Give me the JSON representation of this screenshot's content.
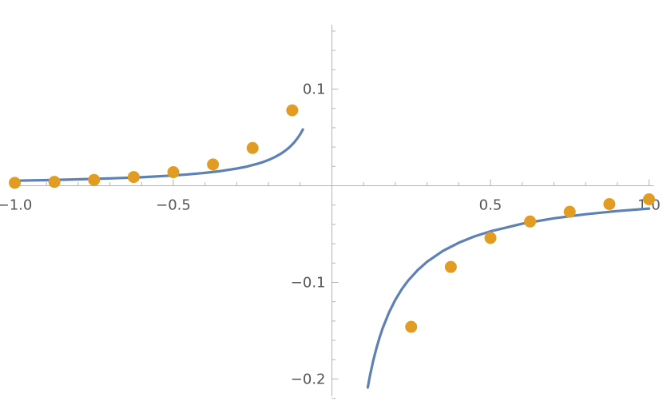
{
  "chart_data": {
    "type": "scatter",
    "title": "",
    "xlabel": "",
    "ylabel": "",
    "xlim": [
      -1.0,
      1.0
    ],
    "ylim": [
      -0.22,
      0.17
    ],
    "grid": false,
    "legend": "none",
    "x_major_ticks": [
      {
        "value": -1.0,
        "label": "−1.0"
      },
      {
        "value": -0.5,
        "label": "−0.5"
      },
      {
        "value": 0.5,
        "label": "0.5"
      },
      {
        "value": 1.0,
        "label": "1.0"
      }
    ],
    "y_major_ticks": [
      {
        "value": 0.1,
        "label": "0.1"
      },
      {
        "value": -0.1,
        "label": "−0.1"
      },
      {
        "value": -0.2,
        "label": "−0.2"
      }
    ],
    "x_minor_step": 0.1,
    "y_minor_step": 0.02,
    "curve": {
      "color": "#5e81b5",
      "segments": [
        {
          "x_start": -1.0,
          "x_end": -0.0915
        },
        {
          "x_start": 0.113,
          "x_end": 1.0
        }
      ],
      "points": [
        [
          -1.0,
          0.0052
        ],
        [
          -0.9,
          0.0058
        ],
        [
          -0.8,
          0.0066
        ],
        [
          -0.7,
          0.0076
        ],
        [
          -0.6,
          0.0088
        ],
        [
          -0.5,
          0.0106
        ],
        [
          -0.45,
          0.0118
        ],
        [
          -0.4,
          0.0133
        ],
        [
          -0.35,
          0.0152
        ],
        [
          -0.3,
          0.0178
        ],
        [
          -0.27,
          0.0197
        ],
        [
          -0.24,
          0.0222
        ],
        [
          -0.22,
          0.0242
        ],
        [
          -0.2,
          0.0266
        ],
        [
          -0.18,
          0.0296
        ],
        [
          -0.16,
          0.0333
        ],
        [
          -0.15,
          0.0355
        ],
        [
          -0.14,
          0.038
        ],
        [
          -0.13,
          0.041
        ],
        [
          -0.12,
          0.0444
        ],
        [
          -0.11,
          0.0484
        ],
        [
          -0.1,
          0.0532
        ],
        [
          -0.0915,
          0.0582
        ],
        [
          0.113,
          -0.2088
        ],
        [
          0.12,
          -0.1967
        ],
        [
          0.13,
          -0.1815
        ],
        [
          0.14,
          -0.1686
        ],
        [
          0.15,
          -0.1573
        ],
        [
          0.16,
          -0.1475
        ],
        [
          0.18,
          -0.1311
        ],
        [
          0.2,
          -0.118
        ],
        [
          0.22,
          -0.1073
        ],
        [
          0.24,
          -0.0983
        ],
        [
          0.27,
          -0.0874
        ],
        [
          0.3,
          -0.0787
        ],
        [
          0.35,
          -0.0674
        ],
        [
          0.4,
          -0.059
        ],
        [
          0.45,
          -0.0524
        ],
        [
          0.5,
          -0.0472
        ],
        [
          0.6,
          -0.0393
        ],
        [
          0.7,
          -0.0337
        ],
        [
          0.8,
          -0.0295
        ],
        [
          0.9,
          -0.0262
        ],
        [
          1.0,
          -0.0236
        ]
      ]
    },
    "series": [
      {
        "color": "#e19c24",
        "points": [
          [
            -1.0,
            0.003
          ],
          [
            -0.875,
            0.004
          ],
          [
            -0.75,
            0.006
          ],
          [
            -0.625,
            0.009
          ],
          [
            -0.5,
            0.014
          ],
          [
            -0.375,
            0.022
          ],
          [
            -0.25,
            0.039
          ],
          [
            -0.125,
            0.078
          ],
          [
            0.25,
            -0.146
          ],
          [
            0.375,
            -0.084
          ],
          [
            0.5,
            -0.054
          ],
          [
            0.625,
            -0.037
          ],
          [
            0.75,
            -0.027
          ],
          [
            0.875,
            -0.019
          ],
          [
            1.0,
            -0.014
          ]
        ]
      }
    ]
  }
}
